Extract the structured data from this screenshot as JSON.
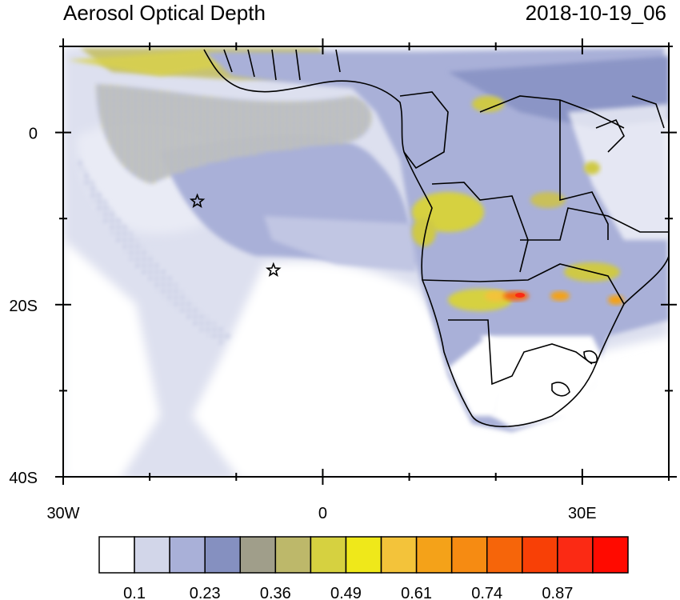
{
  "title_left": "Aerosol Optical Depth",
  "title_right": "2018-10-19_06",
  "axes": {
    "x_ticks": [
      {
        "label": "30W",
        "lon": -30
      },
      {
        "label": "0",
        "lon": 0
      },
      {
        "label": "30E",
        "lon": 30
      }
    ],
    "y_ticks": [
      {
        "label": "0",
        "lat": 0
      },
      {
        "label": "20S",
        "lat": -20
      },
      {
        "label": "40S",
        "lat": -40
      }
    ],
    "x_minor": [
      -20,
      -10,
      10,
      20,
      40
    ],
    "y_minor": [
      10,
      -10,
      -30
    ],
    "lon_range": [
      -30,
      40
    ],
    "lat_range": [
      -40,
      10
    ]
  },
  "markers": [
    {
      "name": "star-marker",
      "lon": -14.5,
      "lat": -8
    },
    {
      "name": "star-marker",
      "lon": -5.7,
      "lat": -16
    }
  ],
  "colorbar": {
    "colors": [
      "#ffffff",
      "#d2d6e9",
      "#a9b0d8",
      "#8590c0",
      "#a09e8a",
      "#bdb86a",
      "#d6d140",
      "#efe81a",
      "#f3c33a",
      "#f4a219",
      "#f68b12",
      "#f6650a",
      "#f84006",
      "#fb2a14",
      "#ff0a00"
    ],
    "labels": [
      {
        "text": "0.1",
        "after_box": 1
      },
      {
        "text": "0.23",
        "after_box": 3
      },
      {
        "text": "0.36",
        "after_box": 5
      },
      {
        "text": "0.49",
        "after_box": 7
      },
      {
        "text": "0.61",
        "after_box": 9
      },
      {
        "text": "0.74",
        "after_box": 11
      },
      {
        "text": "0.87",
        "after_box": 13
      }
    ]
  }
}
